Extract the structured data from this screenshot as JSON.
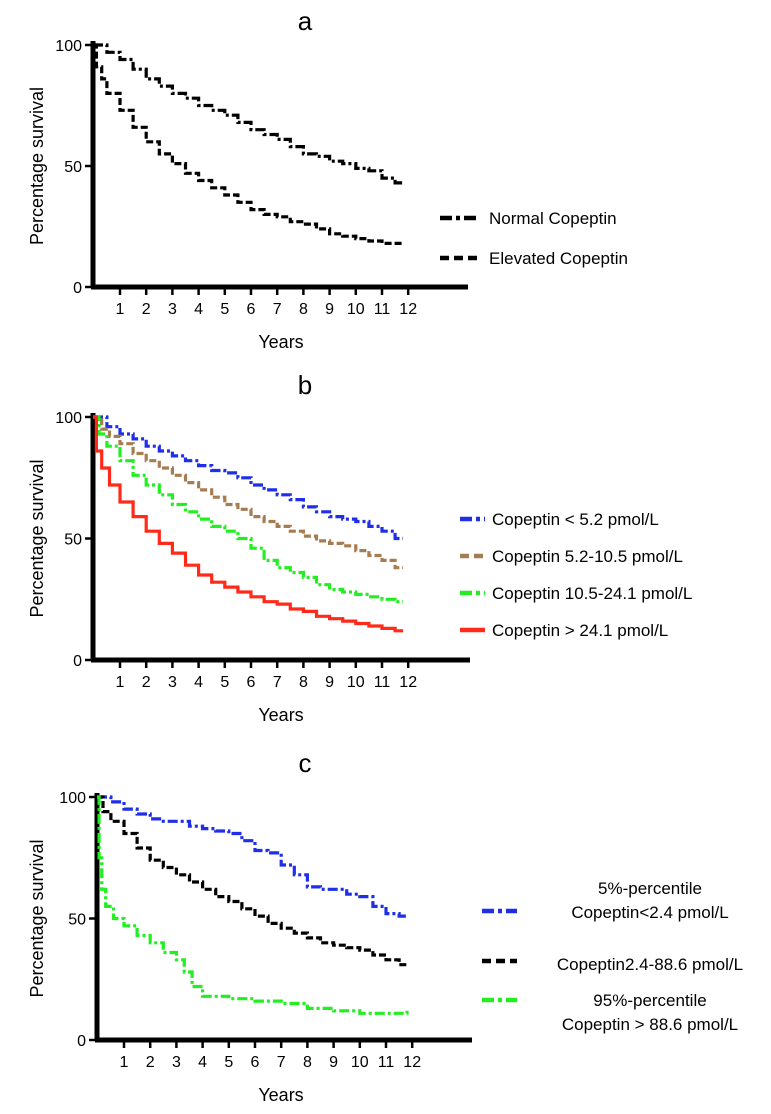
{
  "figure": {
    "panels": [
      "a",
      "b",
      "c"
    ]
  },
  "chart_data": [
    {
      "panel": "a",
      "type": "line",
      "subtype": "kaplan-meier",
      "title": "",
      "xlabel": "Years",
      "ylabel": "Percentage survival",
      "xlim": [
        0,
        12
      ],
      "ylim": [
        0,
        100
      ],
      "xticks": [
        "1",
        "2",
        "3",
        "4",
        "5",
        "6",
        "7",
        "8",
        "9",
        "10",
        "11",
        "12"
      ],
      "yticks": [
        "0",
        "50",
        "100"
      ],
      "grid": false,
      "legend_position": "right",
      "series": [
        {
          "name": "Normal Copeptin",
          "color": "#000000",
          "style": "dash-dot",
          "x": [
            0,
            0.5,
            1,
            1.5,
            2,
            2.5,
            3,
            3.5,
            4,
            4.5,
            5,
            5.5,
            6,
            6.5,
            7,
            7.5,
            8,
            8.5,
            9,
            9.5,
            10,
            10.5,
            11,
            11.5,
            11.8
          ],
          "y": [
            100,
            97,
            94,
            90,
            86,
            83,
            80,
            78,
            75,
            73,
            71,
            68,
            65,
            63,
            61,
            58,
            55,
            54,
            52,
            51,
            49,
            48,
            45,
            43,
            43
          ]
        },
        {
          "name": "Elevated Copeptin",
          "color": "#000000",
          "style": "dashed",
          "x": [
            0,
            0.1,
            0.3,
            0.5,
            1,
            1.5,
            2,
            2.5,
            3,
            3.5,
            4,
            4.5,
            5,
            5.5,
            6,
            6.5,
            7,
            7.5,
            8,
            8.5,
            9,
            9.5,
            10,
            10.5,
            11,
            11.5,
            11.8
          ],
          "y": [
            100,
            91,
            86,
            80,
            73,
            66,
            60,
            55,
            51,
            47,
            44,
            41,
            38,
            35,
            32,
            30,
            29,
            27,
            26,
            24,
            22,
            21,
            20,
            19,
            18,
            18,
            18
          ]
        }
      ]
    },
    {
      "panel": "b",
      "type": "line",
      "subtype": "kaplan-meier",
      "title": "",
      "xlabel": "Years",
      "ylabel": "Percentage survival",
      "xlim": [
        0,
        12
      ],
      "ylim": [
        0,
        100
      ],
      "xticks": [
        "1",
        "2",
        "3",
        "4",
        "5",
        "6",
        "7",
        "8",
        "9",
        "10",
        "11",
        "12"
      ],
      "yticks": [
        "0",
        "50",
        "100"
      ],
      "grid": false,
      "legend_position": "right",
      "series": [
        {
          "name": "Copeptin < 5.2 pmol/L",
          "color": "#1f2fe8",
          "style": "dash-dot",
          "x": [
            0,
            0.5,
            1,
            1.5,
            2,
            2.5,
            3,
            3.5,
            4,
            4.5,
            5,
            5.5,
            6,
            6.5,
            7,
            7.5,
            8,
            8.5,
            9,
            9.5,
            10,
            10.5,
            11,
            11.5,
            11.8
          ],
          "y": [
            100,
            96,
            93,
            91,
            88,
            86,
            84,
            82,
            80,
            78,
            77,
            75,
            72,
            70,
            68,
            66,
            63,
            61,
            59,
            58,
            57,
            55,
            53,
            50,
            50
          ]
        },
        {
          "name": "Copeptin 5.2-10.5 pmol/L",
          "color": "#a67c52",
          "style": "dashed",
          "x": [
            0,
            0.3,
            0.6,
            1,
            1.5,
            2,
            2.5,
            3,
            3.5,
            4,
            4.5,
            5,
            5.5,
            6,
            6.5,
            7,
            7.5,
            8,
            8.5,
            9,
            9.5,
            10,
            10.5,
            11,
            11.5,
            11.8
          ],
          "y": [
            100,
            95,
            92,
            89,
            85,
            82,
            79,
            76,
            73,
            70,
            67,
            64,
            62,
            59,
            57,
            55,
            53,
            51,
            49,
            48,
            47,
            45,
            43,
            41,
            38,
            38
          ]
        },
        {
          "name": "Copeptin 10.5-24.1 pmol/L",
          "color": "#22ee22",
          "style": "dash-dot",
          "x": [
            0,
            0.2,
            0.5,
            1,
            1.5,
            2,
            2.5,
            3,
            3.5,
            4,
            4.5,
            5,
            5.5,
            6,
            6.5,
            7,
            7.5,
            8,
            8.5,
            9,
            9.5,
            10,
            10.5,
            11,
            11.5,
            11.8
          ],
          "y": [
            100,
            93,
            88,
            82,
            76,
            72,
            68,
            64,
            61,
            58,
            55,
            53,
            50,
            46,
            41,
            38,
            36,
            34,
            31,
            29,
            28,
            27,
            26,
            25,
            24,
            24
          ]
        },
        {
          "name": "Copeptin > 24.1 pmol/L",
          "color": "#ff2a1a",
          "style": "solid",
          "x": [
            0,
            0.1,
            0.3,
            0.6,
            1,
            1.5,
            2,
            2.5,
            3,
            3.5,
            4,
            4.5,
            5,
            5.5,
            6,
            6.5,
            7,
            7.5,
            8,
            8.5,
            9,
            9.5,
            10,
            10.5,
            11,
            11.5,
            11.8
          ],
          "y": [
            100,
            86,
            79,
            72,
            65,
            59,
            53,
            48,
            44,
            39,
            35,
            32,
            30,
            28,
            26,
            24,
            23,
            21,
            20,
            18,
            17,
            16,
            15,
            14,
            13,
            12,
            12
          ]
        }
      ]
    },
    {
      "panel": "c",
      "type": "line",
      "subtype": "kaplan-meier",
      "title": "",
      "xlabel": "Years",
      "ylabel": "Percentage survival",
      "xlim": [
        0,
        12
      ],
      "ylim": [
        0,
        100
      ],
      "xticks": [
        "1",
        "2",
        "3",
        "4",
        "5",
        "6",
        "7",
        "8",
        "9",
        "10",
        "11",
        "12"
      ],
      "yticks": [
        "0",
        "50",
        "100"
      ],
      "grid": false,
      "legend_position": "right",
      "series": [
        {
          "name": "5%-percentile Copeptin<2.4 pmol/L",
          "legend_lines": [
            "5%-percentile",
            "Copeptin<2.4 pmol/L"
          ],
          "color": "#1f2fe8",
          "style": "dash-dot",
          "x": [
            0,
            0.5,
            1,
            1.5,
            2,
            2.5,
            3,
            3.5,
            4,
            4.5,
            5,
            5.5,
            6,
            6.5,
            7,
            7.5,
            8,
            8.5,
            9,
            9.5,
            10,
            10.5,
            11,
            11.5,
            11.8
          ],
          "y": [
            100,
            98,
            95,
            93,
            91,
            90,
            90,
            88,
            87,
            86,
            85,
            82,
            78,
            77,
            72,
            68,
            63,
            62,
            62,
            60,
            59,
            55,
            52,
            51,
            51
          ]
        },
        {
          "name": "Copeptin2.4-88.6 pmol/L",
          "legend_lines": [
            "Copeptin2.4-88.6 pmol/L"
          ],
          "color": "#000000",
          "style": "dashed",
          "x": [
            0,
            0.2,
            0.5,
            1,
            1.5,
            2,
            2.5,
            3,
            3.5,
            4,
            4.5,
            5,
            5.5,
            6,
            6.5,
            7,
            7.5,
            8,
            8.5,
            9,
            9.5,
            10,
            10.5,
            11,
            11.5,
            11.8
          ],
          "y": [
            100,
            94,
            90,
            85,
            79,
            74,
            71,
            68,
            65,
            62,
            59,
            57,
            54,
            51,
            48,
            46,
            44,
            42,
            40,
            39,
            38,
            37,
            35,
            33,
            31,
            31
          ]
        },
        {
          "name": "95%-percentile Copeptin > 88.6 pmol/L",
          "legend_lines": [
            "95%-percentile",
            "Copeptin > 88.6 pmol/L"
          ],
          "color": "#22ee22",
          "style": "dash-dot",
          "x": [
            0,
            0.05,
            0.15,
            0.3,
            0.6,
            1,
            1.5,
            2,
            2.5,
            3,
            3.3,
            3.6,
            4,
            5,
            6,
            7,
            8,
            9,
            10,
            11,
            11.8
          ],
          "y": [
            100,
            75,
            62,
            55,
            50,
            47,
            43,
            40,
            36,
            33,
            28,
            22,
            18,
            17,
            16,
            15,
            13,
            12,
            11,
            11,
            12
          ]
        }
      ]
    }
  ]
}
